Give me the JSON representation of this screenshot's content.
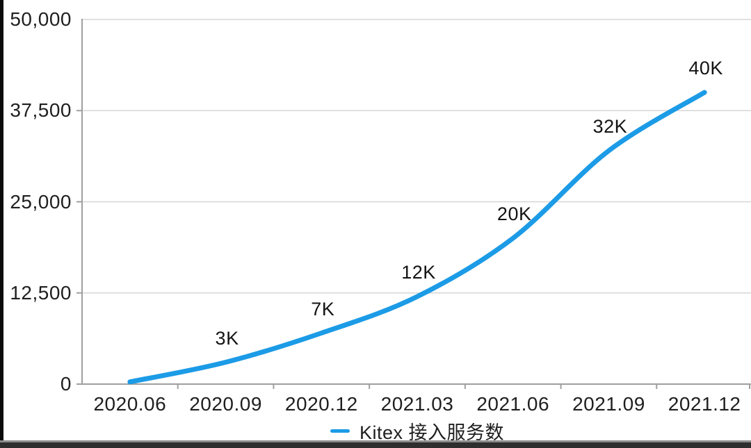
{
  "chart_data": {
    "type": "line",
    "title": "",
    "xlabel": "",
    "ylabel": "",
    "x": [
      "2020.06",
      "2020.09",
      "2020.12",
      "2021.03",
      "2021.06",
      "2021.09",
      "2021.12"
    ],
    "series": [
      {
        "name": "Kitex 接入服务数",
        "values": [
          300,
          3000,
          7000,
          12000,
          20000,
          32000,
          40000
        ],
        "color": "#1c9be6"
      }
    ],
    "point_labels": [
      "",
      "3K",
      "7K",
      "12K",
      "20K",
      "32K",
      "40K"
    ],
    "ylim": [
      0,
      50000
    ],
    "yticks": [
      0,
      12500,
      25000,
      37500,
      50000
    ],
    "ytick_labels": [
      "0",
      "12,500",
      "25,000",
      "37,500",
      "50,000"
    ],
    "grid": "horizontal",
    "legend_position": "bottom"
  },
  "legend": {
    "swatch_color": "#1c9be6",
    "label": "Kitex 接入服务数"
  },
  "colors": {
    "line": "#1c9be6",
    "grid": "#d6d6d6",
    "axis": "#9f9f9f",
    "text": "#1f1f1f",
    "background": "#ffffff",
    "bottom_bar": "#2e2e2e",
    "left_border": "#0a0a0a"
  }
}
